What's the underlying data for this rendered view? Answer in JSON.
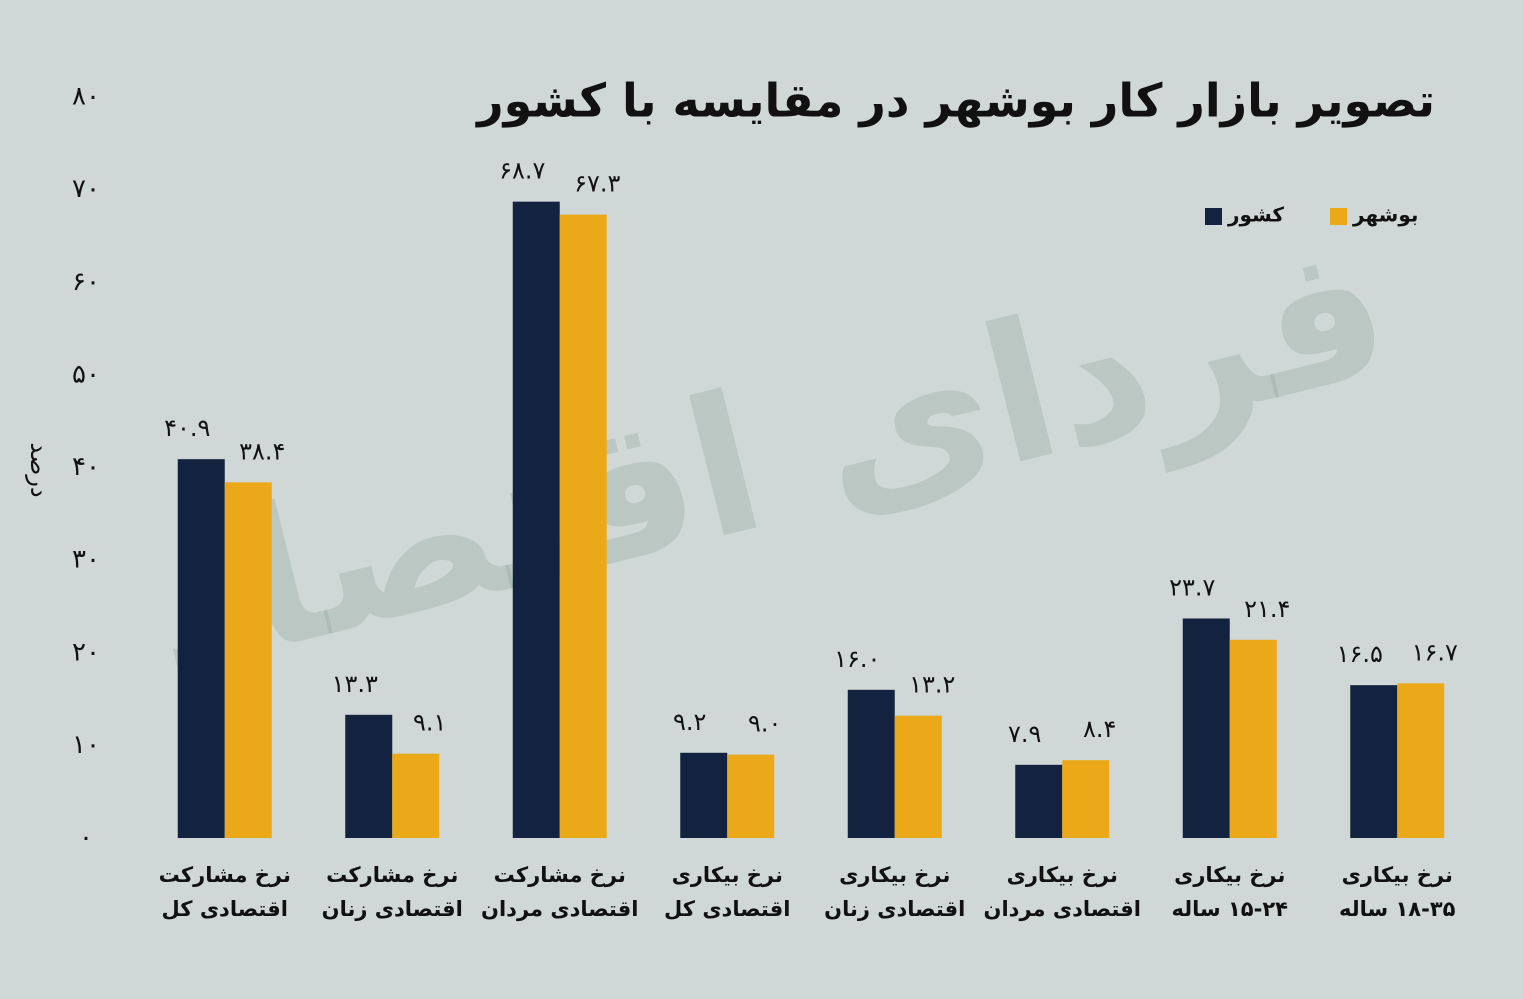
{
  "chart_data": {
    "type": "bar",
    "title": "تصویر بازار کار بوشهر در مقایسه با کشور",
    "watermark": "فردای اقتصاد",
    "y_label": "درصد",
    "categories": [
      "نرخ مشارکت\nاقتصادی کل",
      "نرخ مشارکت\nاقتصادی زنان",
      "نرخ مشارکت\nاقتصادی مردان",
      "نرخ بیکاری\nاقتصادی کل",
      "نرخ بیکاری\nاقتصادی زنان",
      "نرخ بیکاری\nاقتصادی مردان",
      "نرخ بیکاری\n۱۵-۲۴ ساله",
      "نرخ بیکاری\n۱۸-۳۵ ساله"
    ],
    "series": [
      {
        "name": "کشور",
        "color": "#13233f",
        "values": [
          40.9,
          13.3,
          68.7,
          9.2,
          16.0,
          7.9,
          23.7,
          16.5
        ],
        "value_labels": [
          "۴۰.۹",
          "۱۳.۳",
          "۶۸.۷",
          "۹.۲",
          "۱۶.۰",
          "۷.۹",
          "۲۳.۷",
          "۱۶.۵"
        ]
      },
      {
        "name": "بوشهر",
        "color": "#eba818",
        "values": [
          38.4,
          9.1,
          67.3,
          9.0,
          13.2,
          8.4,
          21.4,
          16.7
        ],
        "value_labels": [
          "۳۸.۴",
          "۹.۱",
          "۶۷.۳",
          "۹.۰",
          "۱۳.۲",
          "۸.۴",
          "۲۱.۴",
          "۱۶.۷"
        ]
      }
    ],
    "ylim": [
      0,
      80
    ],
    "yticks": [
      {
        "value": 0,
        "label": "۰"
      },
      {
        "value": 10,
        "label": "۱۰"
      },
      {
        "value": 20,
        "label": "۲۰"
      },
      {
        "value": 30,
        "label": "۳۰"
      },
      {
        "value": 40,
        "label": "۴۰"
      },
      {
        "value": 50,
        "label": "۵۰"
      },
      {
        "value": 60,
        "label": "۶۰"
      },
      {
        "value": 70,
        "label": "۷۰"
      },
      {
        "value": 80,
        "label": "۸۰"
      }
    ],
    "grid": false
  }
}
